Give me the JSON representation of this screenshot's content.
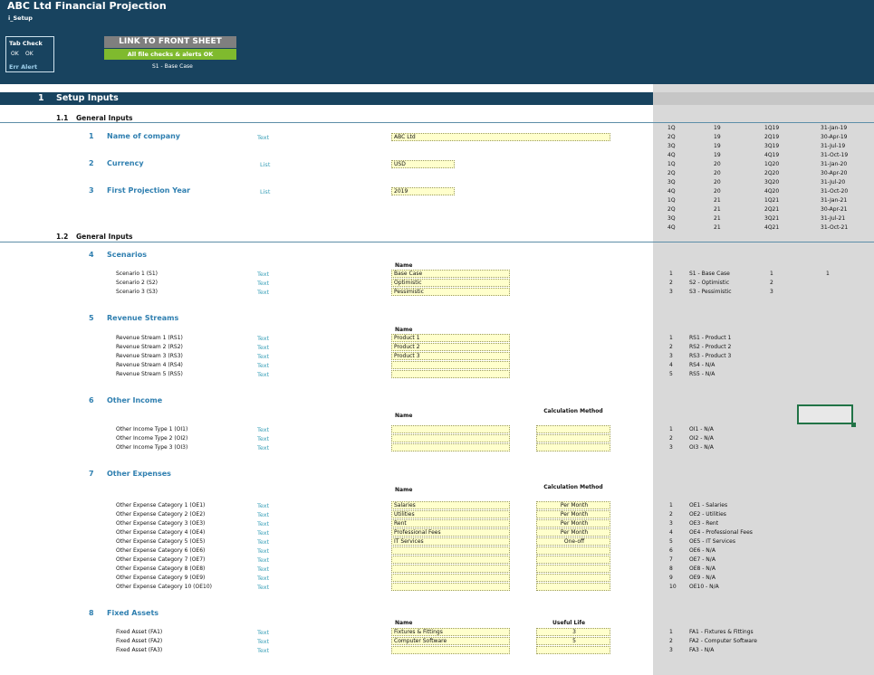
{
  "header": {
    "title": "ABC Ltd Financial Projection",
    "subtitle": "i_Setup",
    "tab_check_label": "Tab Check",
    "tab_check_values": [
      "OK",
      "OK"
    ],
    "err_alert_label": "Err Alert",
    "link_button": "LINK TO FRONT SHEET",
    "checks_status": "All file checks & alerts OK",
    "scenario_label": "S1 - Base Case"
  },
  "section": {
    "number": "1",
    "title": "Setup Inputs"
  },
  "general1": {
    "number": "1.1",
    "title": "General Inputs"
  },
  "general2": {
    "number": "1.2",
    "title": "General Inputs"
  },
  "inputs": [
    {
      "num": "1",
      "label": "Name of company",
      "type": "Text",
      "value": "ABC Ltd"
    },
    {
      "num": "2",
      "label": "Currency",
      "type": "List",
      "value": "USD"
    },
    {
      "num": "3",
      "label": "First Projection Year",
      "type": "List",
      "value": "2019"
    }
  ],
  "quarters": [
    [
      "1Q",
      "19",
      "1Q19",
      "31-Jan-19"
    ],
    [
      "2Q",
      "19",
      "2Q19",
      "30-Apr-19"
    ],
    [
      "3Q",
      "19",
      "3Q19",
      "31-Jul-19"
    ],
    [
      "4Q",
      "19",
      "4Q19",
      "31-Oct-19"
    ],
    [
      "1Q",
      "20",
      "1Q20",
      "31-Jan-20"
    ],
    [
      "2Q",
      "20",
      "2Q20",
      "30-Apr-20"
    ],
    [
      "3Q",
      "20",
      "3Q20",
      "31-Jul-20"
    ],
    [
      "4Q",
      "20",
      "4Q20",
      "31-Oct-20"
    ],
    [
      "1Q",
      "21",
      "1Q21",
      "31-Jan-21"
    ],
    [
      "2Q",
      "21",
      "2Q21",
      "30-Apr-21"
    ],
    [
      "3Q",
      "21",
      "3Q21",
      "31-Jul-21"
    ],
    [
      "4Q",
      "21",
      "4Q21",
      "31-Oct-21"
    ]
  ],
  "scenarios": {
    "num": "4",
    "title": "Scenarios",
    "col_name": "Name",
    "rows": [
      {
        "label": "Scenario 1 (S1)",
        "type": "Text",
        "name": "Base Case",
        "idx": "1",
        "code": "S1 - Base Case",
        "a": "1",
        "b": "1"
      },
      {
        "label": "Scenario 2 (S2)",
        "type": "Text",
        "name": "Optimistic",
        "idx": "2",
        "code": "S2 - Optimistic",
        "a": "2",
        "b": ""
      },
      {
        "label": "Scenario 3 (S3)",
        "type": "Text",
        "name": "Pessimistic",
        "idx": "3",
        "code": "S3 - Pessimistic",
        "a": "3",
        "b": ""
      }
    ]
  },
  "revenue": {
    "num": "5",
    "title": "Revenue Streams",
    "col_name": "Name",
    "rows": [
      {
        "label": "Revenue Stream 1 (RS1)",
        "type": "Text",
        "name": "Product 1",
        "idx": "1",
        "code": "RS1 - Product 1"
      },
      {
        "label": "Revenue Stream 2 (RS2)",
        "type": "Text",
        "name": "Product 2",
        "idx": "2",
        "code": "RS2 - Product 2"
      },
      {
        "label": "Revenue Stream 3 (RS3)",
        "type": "Text",
        "name": "Product 3",
        "idx": "3",
        "code": "RS3 - Product 3"
      },
      {
        "label": "Revenue Stream 4 (RS4)",
        "type": "Text",
        "name": "",
        "idx": "4",
        "code": "RS4 - N/A"
      },
      {
        "label": "Revenue Stream 5 (RS5)",
        "type": "Text",
        "name": "",
        "idx": "5",
        "code": "RS5 - N/A"
      }
    ]
  },
  "other_income": {
    "num": "6",
    "title": "Other Income",
    "col_name": "Name",
    "col_calc": "Calculation Method",
    "rows": [
      {
        "label": "Other Income Type 1 (OI1)",
        "type": "Text",
        "name": "",
        "calc": "",
        "idx": "1",
        "code": "OI1 - N/A"
      },
      {
        "label": "Other Income Type 2 (OI2)",
        "type": "Text",
        "name": "",
        "calc": "",
        "idx": "2",
        "code": "OI2 - N/A"
      },
      {
        "label": "Other Income Type 3 (OI3)",
        "type": "Text",
        "name": "",
        "calc": "",
        "idx": "3",
        "code": "OI3 - N/A"
      }
    ]
  },
  "other_expenses": {
    "num": "7",
    "title": "Other Expenses",
    "col_name": "Name",
    "col_calc": "Calculation Method",
    "rows": [
      {
        "label": "Other Expense Category 1 (OE1)",
        "type": "Text",
        "name": "Salaries",
        "calc": "Per Month",
        "idx": "1",
        "code": "OE1 - Salaries"
      },
      {
        "label": "Other Expense Category 2 (OE2)",
        "type": "Text",
        "name": "Utilities",
        "calc": "Per Month",
        "idx": "2",
        "code": "OE2 - Utilities"
      },
      {
        "label": "Other Expense Category 3 (OE3)",
        "type": "Text",
        "name": "Rent",
        "calc": "Per Month",
        "idx": "3",
        "code": "OE3 - Rent"
      },
      {
        "label": "Other Expense Category 4 (OE4)",
        "type": "Text",
        "name": "Professional Fees",
        "calc": "Per Month",
        "idx": "4",
        "code": "OE4 - Professional Fees"
      },
      {
        "label": "Other Expense Category 5 (OE5)",
        "type": "Text",
        "name": "IT Services",
        "calc": "One-off",
        "idx": "5",
        "code": "OE5 - IT Services"
      },
      {
        "label": "Other Expense Category 6 (OE6)",
        "type": "Text",
        "name": "",
        "calc": "",
        "idx": "6",
        "code": "OE6 - N/A"
      },
      {
        "label": "Other Expense Category 7 (OE7)",
        "type": "Text",
        "name": "",
        "calc": "",
        "idx": "7",
        "code": "OE7 - N/A"
      },
      {
        "label": "Other Expense Category 8 (OE8)",
        "type": "Text",
        "name": "",
        "calc": "",
        "idx": "8",
        "code": "OE8 - N/A"
      },
      {
        "label": "Other Expense Category 9 (OE9)",
        "type": "Text",
        "name": "",
        "calc": "",
        "idx": "9",
        "code": "OE9 - N/A"
      },
      {
        "label": "Other Expense Category 10 (OE10)",
        "type": "Text",
        "name": "",
        "calc": "",
        "idx": "10",
        "code": "OE10 - N/A"
      }
    ]
  },
  "fixed_assets": {
    "num": "8",
    "title": "Fixed Assets",
    "col_name": "Name",
    "col_life": "Useful Life",
    "rows": [
      {
        "label": "Fixed Asset (FA1)",
        "type": "Text",
        "name": "Fixtures & Fittings",
        "life": "3",
        "idx": "1",
        "code": "FA1 - Fixtures & Fittings"
      },
      {
        "label": "Fixed Asset (FA2)",
        "type": "Text",
        "name": "Computer Software",
        "life": "5",
        "idx": "2",
        "code": "FA2 - Computer Software"
      },
      {
        "label": "Fixed Asset (FA3)",
        "type": "Text",
        "name": "",
        "life": "",
        "idx": "3",
        "code": "FA3 - N/A"
      }
    ]
  }
}
